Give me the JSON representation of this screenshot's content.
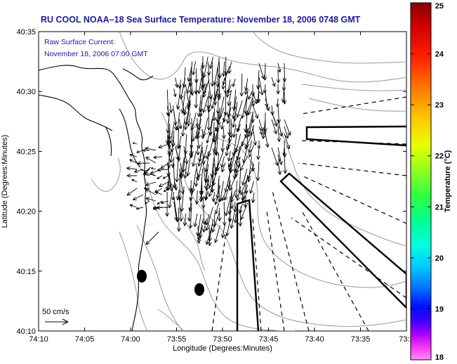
{
  "chart_data": {
    "type": "map",
    "title": "RU COOL  NOAA–18  Sea Surface Temperature:  November 18, 2006 0748 GMT",
    "inset_line1": "Raw Surface Current:",
    "inset_line2": "November 18, 2006 07:00 GMT",
    "xlabel": "Longitude (Degrees:Minutes)",
    "ylabel": "Latitude (Degrees:Minutes)",
    "x_ticks": [
      "74:10",
      "74:05",
      "74:00",
      "73:55",
      "73:50",
      "73:45",
      "73:40",
      "73:35",
      "73:3"
    ],
    "y_ticks": [
      "40:35",
      "40:30",
      "40:25",
      "40:20",
      "40:15",
      "40:10"
    ],
    "colorbar": {
      "label": "Temperature (°C)",
      "ticks": [
        "25",
        "24",
        "23",
        "22",
        "21",
        "20",
        "19",
        "18"
      ],
      "range": [
        18,
        25
      ]
    },
    "scale_label": "50 cm/s",
    "colors": {
      "title": "#1a1aa8",
      "coastline": "#000000",
      "bathymetry": "#9a9a9a",
      "vectors": "#000000"
    }
  }
}
